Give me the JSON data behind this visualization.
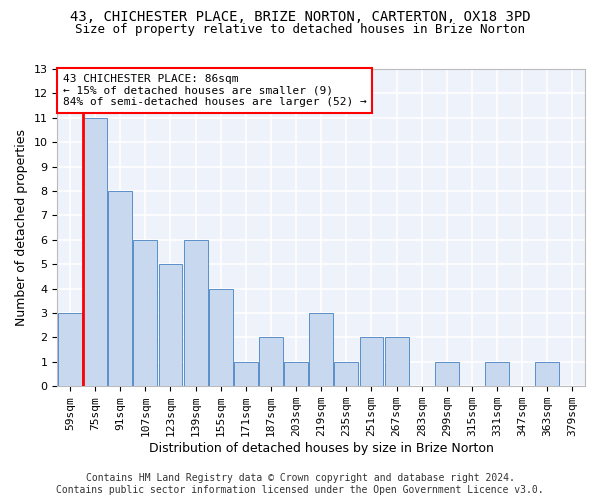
{
  "title1": "43, CHICHESTER PLACE, BRIZE NORTON, CARTERTON, OX18 3PD",
  "title2": "Size of property relative to detached houses in Brize Norton",
  "xlabel": "Distribution of detached houses by size in Brize Norton",
  "ylabel": "Number of detached properties",
  "categories": [
    "59sqm",
    "75sqm",
    "91sqm",
    "107sqm",
    "123sqm",
    "139sqm",
    "155sqm",
    "171sqm",
    "187sqm",
    "203sqm",
    "219sqm",
    "235sqm",
    "251sqm",
    "267sqm",
    "283sqm",
    "299sqm",
    "315sqm",
    "331sqm",
    "347sqm",
    "363sqm",
    "379sqm"
  ],
  "values": [
    3,
    11,
    8,
    6,
    5,
    6,
    4,
    1,
    2,
    1,
    3,
    1,
    2,
    2,
    0,
    1,
    0,
    1,
    0,
    1,
    0
  ],
  "bar_color": "#c8d9ef",
  "bar_edge_color": "#5a8fc8",
  "vline_color": "red",
  "vline_index": 1,
  "annotation_text": "43 CHICHESTER PLACE: 86sqm\n← 15% of detached houses are smaller (9)\n84% of semi-detached houses are larger (52) →",
  "annotation_box_color": "white",
  "annotation_box_edge_color": "red",
  "ylim": [
    0,
    13
  ],
  "yticks": [
    0,
    1,
    2,
    3,
    4,
    5,
    6,
    7,
    8,
    9,
    10,
    11,
    12,
    13
  ],
  "background_color": "#ffffff",
  "plot_bg_color": "#eef2fb",
  "grid_color": "#ffffff",
  "title1_fontsize": 10,
  "title2_fontsize": 9,
  "xlabel_fontsize": 9,
  "ylabel_fontsize": 9,
  "tick_fontsize": 8,
  "annotation_fontsize": 8,
  "footer_fontsize": 7,
  "footer": "Contains HM Land Registry data © Crown copyright and database right 2024.\nContains public sector information licensed under the Open Government Licence v3.0."
}
